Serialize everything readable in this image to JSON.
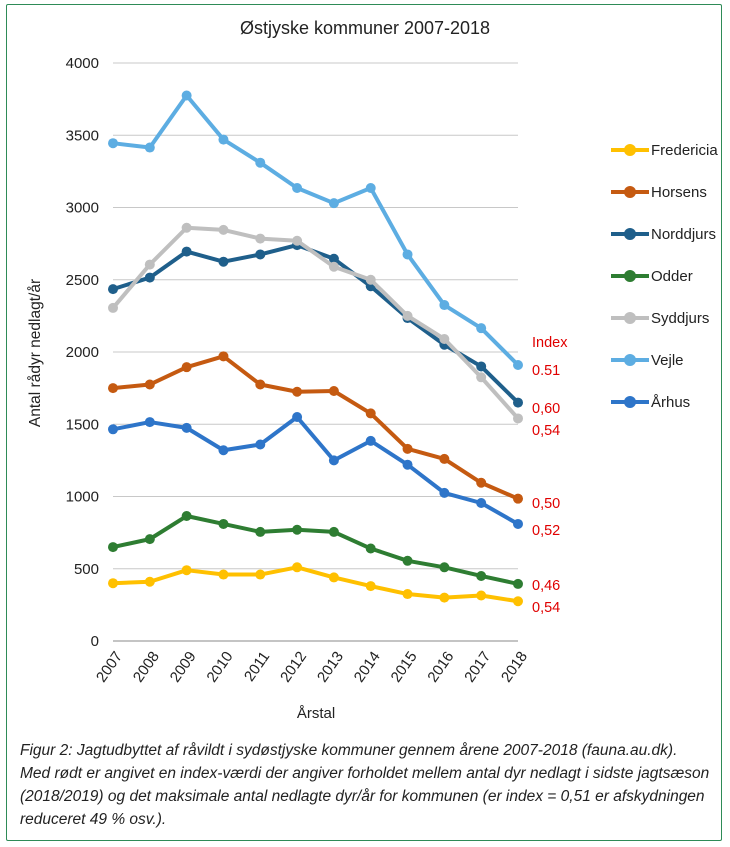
{
  "chart_data": {
    "type": "line",
    "title": "Østjyske kommuner 2007-2018",
    "xlabel": "Årstal",
    "ylabel": "Antal rådyr nedlagt/år",
    "ylim": [
      0,
      4000
    ],
    "yticks": [
      0,
      500,
      1000,
      1500,
      2000,
      2500,
      3000,
      3500,
      4000
    ],
    "grid": true,
    "legend_position": "right",
    "x": [
      "2007",
      "2008",
      "2009",
      "2010",
      "2011",
      "2012",
      "2013",
      "2014",
      "2015",
      "2016",
      "2017",
      "2018"
    ],
    "series": [
      {
        "name": "Fredericia",
        "color": "#ffc000",
        "values": [
          400,
          410,
          490,
          460,
          460,
          510,
          440,
          380,
          325,
          300,
          315,
          275
        ]
      },
      {
        "name": "Horsens",
        "color": "#c55a11",
        "values": [
          1750,
          1775,
          1895,
          1970,
          1775,
          1725,
          1730,
          1575,
          1330,
          1260,
          1095,
          985
        ]
      },
      {
        "name": "Norddjurs",
        "color": "#1f5f8b",
        "values": [
          2435,
          2515,
          2695,
          2625,
          2675,
          2740,
          2645,
          2455,
          2235,
          2050,
          1900,
          1650
        ]
      },
      {
        "name": "Odder",
        "color": "#2e7d32",
        "values": [
          650,
          705,
          865,
          810,
          755,
          770,
          755,
          640,
          555,
          510,
          450,
          395
        ]
      },
      {
        "name": "Syddjurs",
        "color": "#bfbfbf",
        "values": [
          2305,
          2605,
          2860,
          2845,
          2785,
          2770,
          2590,
          2500,
          2250,
          2090,
          1825,
          1540
        ]
      },
      {
        "name": "Vejle",
        "color": "#5dade2",
        "values": [
          3445,
          3415,
          3775,
          3470,
          3310,
          3135,
          3030,
          3135,
          2675,
          2325,
          2165,
          1910
        ]
      },
      {
        "name": "Århus",
        "color": "#2e75c9",
        "values": [
          1465,
          1515,
          1475,
          1320,
          1360,
          1550,
          1250,
          1385,
          1220,
          1025,
          955,
          810
        ]
      }
    ],
    "index_header": "Index",
    "index_labels": [
      {
        "text": "0.51",
        "anchor_value": 1910
      },
      {
        "text": "0,60",
        "anchor_value": 1650
      },
      {
        "text": "0,54",
        "anchor_value": 1540
      },
      {
        "text": "0,50",
        "anchor_value": 985
      },
      {
        "text": "0,52",
        "anchor_value": 810
      },
      {
        "text": "0,46",
        "anchor_value": 395
      },
      {
        "text": "0,54",
        "anchor_value": 275
      }
    ],
    "index_color": "#e00000"
  },
  "caption": {
    "label": "Figur 2:",
    "text": " Jagtudbyttet af råvildt i sydøstjyske kommuner gennem årene 2007-2018 (fauna.au.dk). Med rødt er angivet en index-værdi der angiver forholdet mellem antal dyr nedlagt i sidste jagtsæson (2018/2019) og det maksimale antal nedlagte dyr/år for kommunen (er index = 0,51 er afskydningen reduceret 49 % osv.)."
  }
}
